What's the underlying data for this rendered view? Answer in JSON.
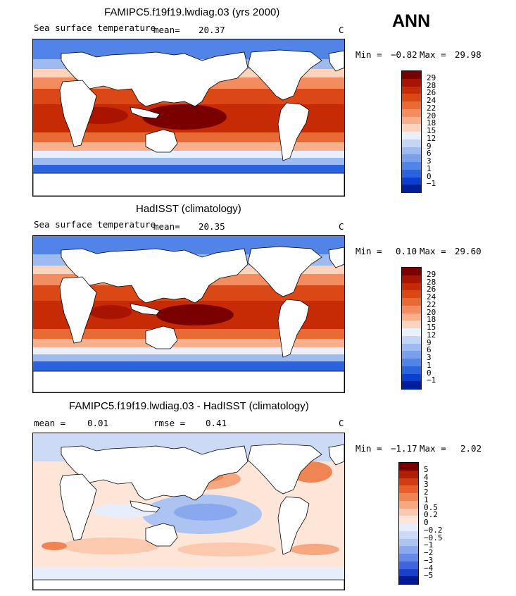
{
  "season": "ANN",
  "panels": [
    {
      "title": "FAMIPC5.f19f19.lwdiag.03 (yrs 2000)",
      "variable": "Sea surface temperature",
      "stat_text": "mean=",
      "stat_value": "20.37",
      "units": "C",
      "min_label": "Min =",
      "min_value": "−0.82",
      "max_label": "Max =",
      "max_value": "29.98",
      "colorbar_labels": [
        "29",
        "28",
        "26",
        "24",
        "22",
        "20",
        "18",
        "15",
        "12",
        "9",
        "6",
        "3",
        "1",
        "0",
        "−1"
      ]
    },
    {
      "title": "HadISST (climatology)",
      "variable": "Sea surface temperature",
      "stat_text": "mean=",
      "stat_value": "20.35",
      "units": "C",
      "min_label": "Min =",
      "min_value": "0.10",
      "max_label": "Max =",
      "max_value": "29.60",
      "colorbar_labels": [
        "29",
        "28",
        "26",
        "24",
        "22",
        "20",
        "18",
        "15",
        "12",
        "9",
        "6",
        "3",
        "1",
        "0",
        "−1"
      ]
    },
    {
      "title": "FAMIPC5.f19f19.lwdiag.03 - HadISST (climatology)",
      "mean_label": "mean =",
      "mean_value": "0.01",
      "rmse_label": "rmse =",
      "rmse_value": "0.41",
      "units": "C",
      "min_label": "Min =",
      "min_value": "−1.17",
      "max_label": "Max =",
      "max_value": "2.02",
      "colorbar_labels": [
        "5",
        "4",
        "3",
        "2",
        "1",
        "0.5",
        "0.2",
        "0",
        "−0.2",
        "−0.5",
        "−1",
        "−2",
        "−3",
        "−4",
        "−5"
      ]
    }
  ],
  "colors": {
    "sst_scale": [
      "#7a0000",
      "#a81400",
      "#c62b06",
      "#dc4716",
      "#ea6a36",
      "#f38d60",
      "#f8b08c",
      "#fcd3bd",
      "#e9f0fb",
      "#c4d6f5",
      "#9dbbf0",
      "#7aa0ec",
      "#5283e6",
      "#2b63df",
      "#0a3fcf",
      "#001e9c"
    ],
    "diff_scale": [
      "#7a0000",
      "#b01e05",
      "#d23c12",
      "#e65f2c",
      "#f08452",
      "#f6a77f",
      "#fbc9ad",
      "#fde6d8",
      "#e7eefb",
      "#ccdaf6",
      "#adc4f2",
      "#89a8ed",
      "#6688e7",
      "#3f64de",
      "#1a3fc9",
      "#001a96"
    ],
    "land": "#ffffff"
  }
}
